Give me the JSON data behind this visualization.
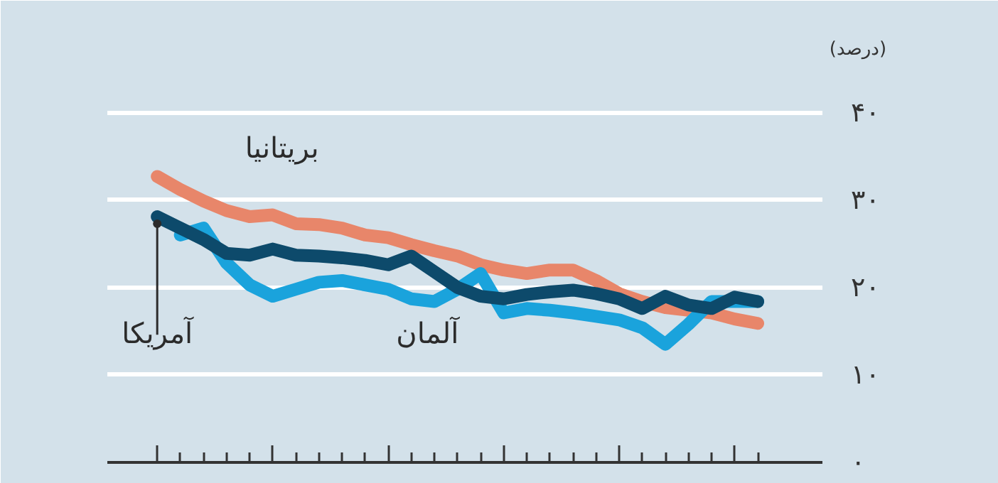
{
  "chart_data": {
    "type": "line",
    "ylabel": "(درصد)",
    "categories": [
      null,
      null,
      null,
      null,
      null,
      null,
      null,
      null,
      null,
      null,
      null,
      null,
      null,
      null,
      null,
      null,
      null,
      null,
      null,
      null,
      null,
      null,
      null,
      null,
      null,
      null,
      null
    ],
    "series": [
      {
        "name": "بریتانیا",
        "color": "#e8866a",
        "values": [
          32.7,
          31.2,
          29.9,
          28.8,
          28.1,
          28.3,
          27.3,
          27.2,
          26.8,
          26.0,
          25.7,
          24.9,
          24.2,
          23.6,
          22.6,
          22.0,
          21.6,
          22.0,
          22.0,
          20.8,
          19.3,
          18.4,
          17.7,
          17.4,
          17.1,
          16.4,
          15.9
        ]
      },
      {
        "name": "آلمان",
        "color": "#1aa3dc",
        "values": [
          null,
          26.0,
          26.8,
          22.8,
          20.3,
          19.0,
          19.8,
          20.6,
          20.8,
          20.3,
          19.8,
          18.7,
          18.4,
          19.8,
          21.6,
          17.1,
          17.6,
          17.4,
          17.1,
          16.7,
          16.3,
          15.4,
          13.5,
          15.8,
          18.4,
          18.4,
          18.4
        ]
      },
      {
        "name": "آمریکا",
        "color": "#0d4a6b",
        "values": [
          28.1,
          26.8,
          25.5,
          23.9,
          23.7,
          24.4,
          23.7,
          23.6,
          23.4,
          23.1,
          22.6,
          23.6,
          21.8,
          20.0,
          19.0,
          18.7,
          19.2,
          19.5,
          19.7,
          19.3,
          18.7,
          17.6,
          19.0,
          18.0,
          17.6,
          18.9,
          18.4
        ]
      }
    ],
    "ylim": [
      0,
      45
    ],
    "yticks": [
      {
        "value": 0,
        "label": "۰"
      },
      {
        "value": 10,
        "label": "۱۰"
      },
      {
        "value": 20,
        "label": "۲۰"
      },
      {
        "value": 30,
        "label": "۳۰"
      },
      {
        "value": 40,
        "label": "۴۰"
      }
    ],
    "grid": "y",
    "tick_labels": "y",
    "marker": "none",
    "line_style": "solid"
  }
}
